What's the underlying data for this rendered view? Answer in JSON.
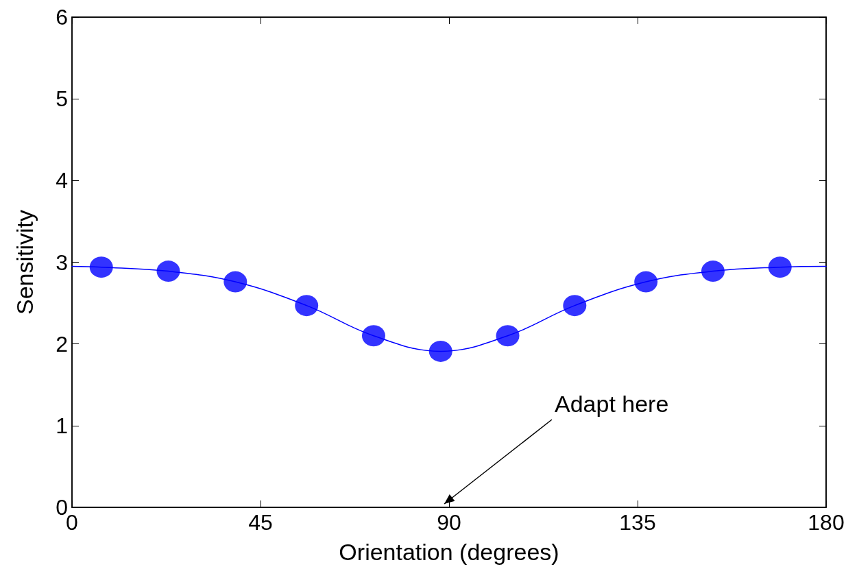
{
  "chart_data": {
    "type": "scatter",
    "xlabel": "Orientation (degrees)",
    "ylabel": "Sensitivity",
    "xlim": [
      0,
      180
    ],
    "xticks": [
      0,
      45,
      90,
      135,
      180
    ],
    "ylim": [
      0,
      6
    ],
    "yticks": [
      0,
      1,
      2,
      3,
      4,
      5,
      6
    ],
    "grid": false,
    "legend": false,
    "series": [
      {
        "type": "line",
        "color": "#0000ff",
        "marker": "none",
        "line_style": "solid",
        "x": [
          0,
          7,
          23,
          39,
          56,
          72,
          88,
          104,
          120,
          137,
          153,
          169,
          180
        ],
        "values": [
          2.95,
          2.94,
          2.89,
          2.76,
          2.47,
          2.1,
          1.91,
          2.1,
          2.47,
          2.76,
          2.89,
          2.94,
          2.95
        ]
      },
      {
        "color": "#0000ff",
        "marker": "circle",
        "x": [
          7,
          23,
          39,
          56,
          72,
          88,
          104,
          120,
          137,
          153,
          169
        ],
        "values": [
          2.94,
          2.89,
          2.76,
          2.47,
          2.1,
          1.91,
          2.1,
          2.47,
          2.76,
          2.89,
          2.94
        ]
      }
    ],
    "annotations": [
      "Adapt here"
    ]
  }
}
